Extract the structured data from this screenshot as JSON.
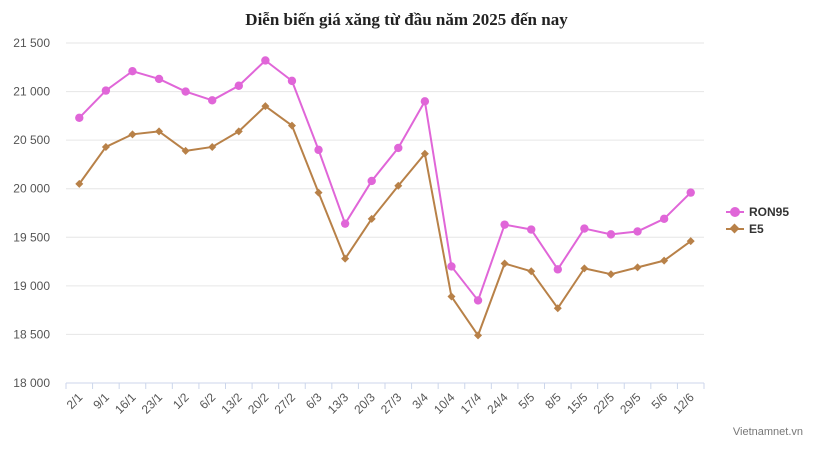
{
  "chart_data": {
    "type": "line",
    "title": "Diễn biến giá xăng từ đầu năm 2025 đến nay",
    "categories": [
      "2/1",
      "9/1",
      "16/1",
      "23/1",
      "1/2",
      "6/2",
      "13/2",
      "20/2",
      "27/2",
      "6/3",
      "13/3",
      "20/3",
      "27/3",
      "3/4",
      "10/4",
      "17/4",
      "24/4",
      "5/5",
      "8/5",
      "15/5",
      "22/5",
      "29/5",
      "5/6",
      "12/6"
    ],
    "series": [
      {
        "name": "RON95",
        "color": "#e066d8",
        "marker": "circle",
        "values": [
          20730,
          21010,
          21210,
          21130,
          21000,
          20910,
          21060,
          21320,
          21110,
          20400,
          19640,
          20080,
          20420,
          20900,
          19200,
          18850,
          19630,
          19580,
          19170,
          19590,
          19530,
          19560,
          19690,
          19960
        ]
      },
      {
        "name": "E5",
        "color": "#b88148",
        "marker": "diamond",
        "values": [
          20050,
          20430,
          20560,
          20590,
          20390,
          20430,
          20590,
          20850,
          20650,
          19960,
          19280,
          19690,
          20030,
          20360,
          18890,
          18490,
          19230,
          19150,
          18770,
          19180,
          19120,
          19190,
          19260,
          19460
        ]
      }
    ],
    "ylim": [
      18000,
      21500
    ],
    "yticks": [
      18000,
      18500,
      19000,
      19500,
      20000,
      20500,
      21000,
      21500
    ],
    "ytick_labels": [
      "18 000",
      "18 500",
      "19 000",
      "19 500",
      "20 000",
      "20 500",
      "21 000",
      "21 500"
    ],
    "grid": true,
    "legend": "right"
  },
  "credit": "Vietnamnet.vn"
}
